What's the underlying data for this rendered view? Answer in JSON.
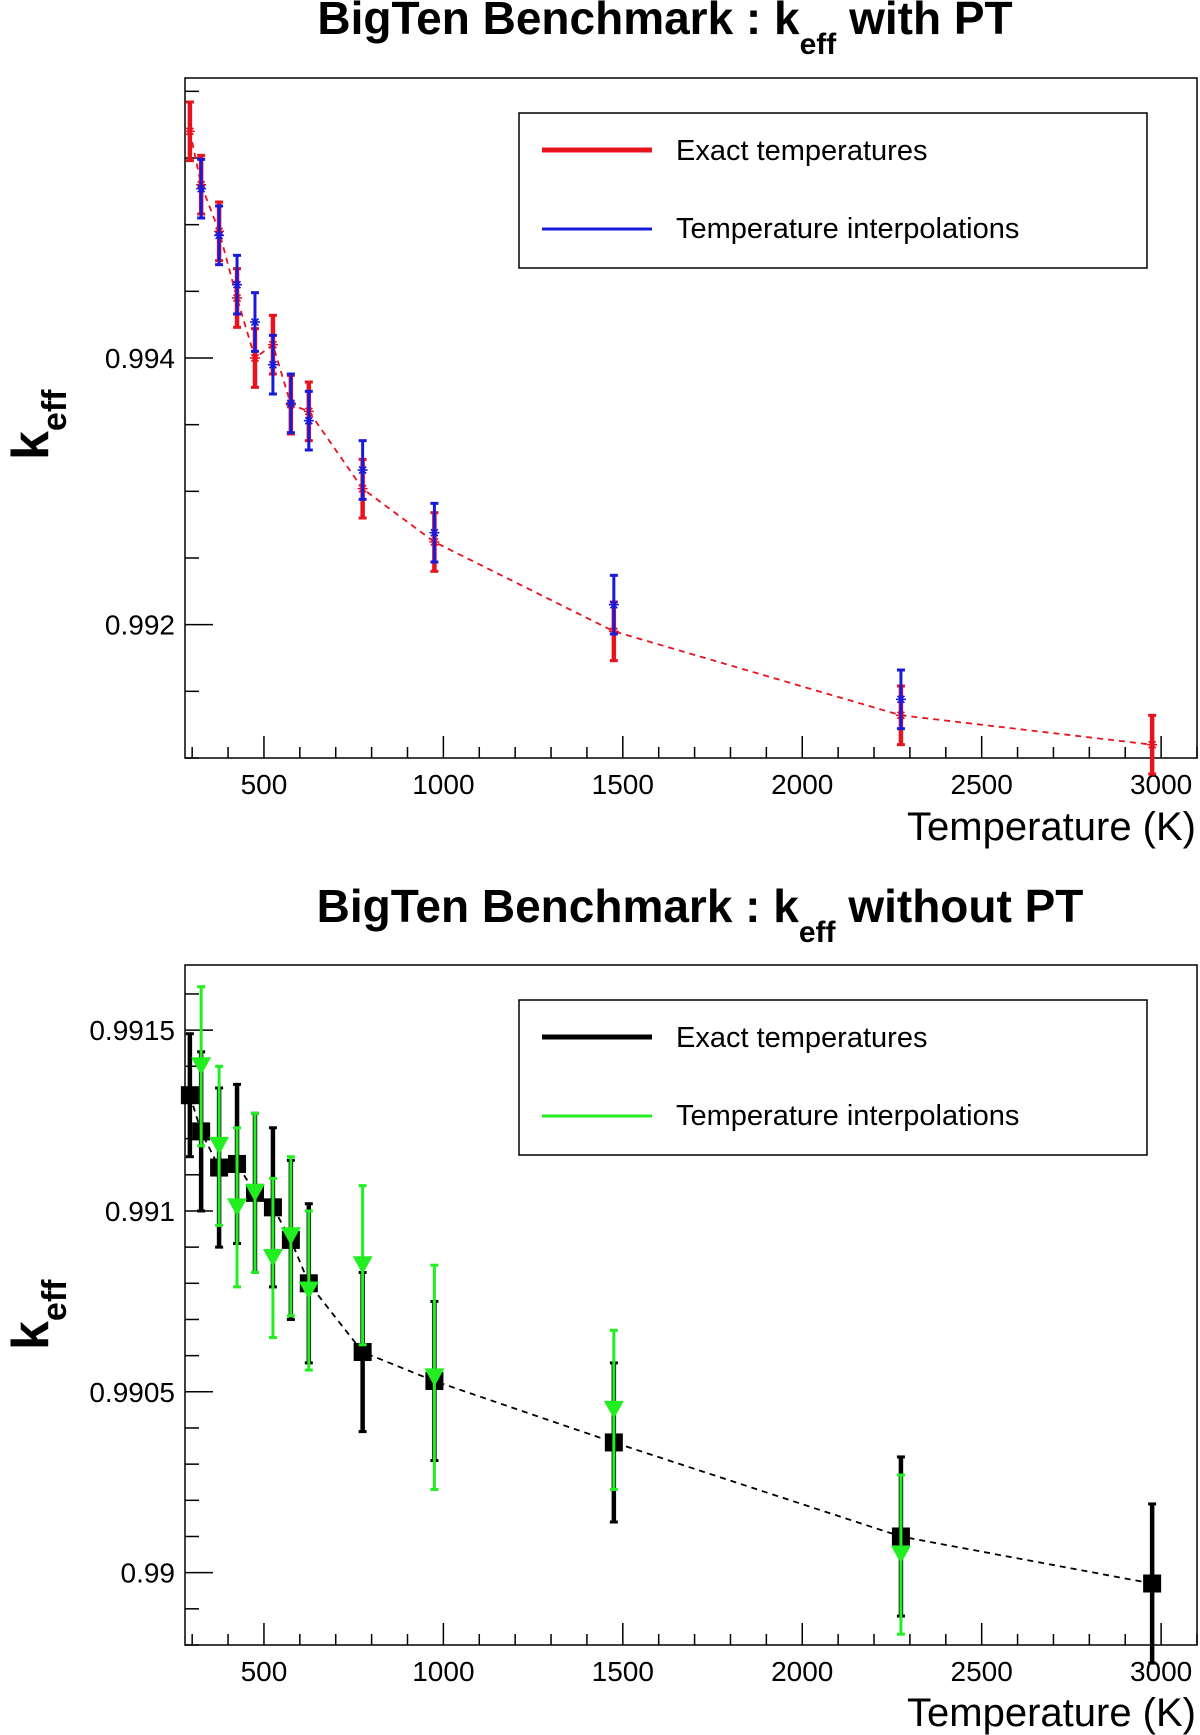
{
  "chart_data": [
    {
      "type": "scatter",
      "title": "BigTen Benchmark : k",
      "title_subscript": "eff",
      "title_suffix": " with PT",
      "xlabel": "Temperature (K)",
      "ylabel": "k",
      "ylabel_subscript": "eff",
      "xlim": [
        280,
        3100
      ],
      "ylim": [
        0.991,
        0.9961
      ],
      "xticks": [
        500,
        1000,
        1500,
        2000,
        2500,
        3000
      ],
      "xtick_labels": [
        "500",
        "1000",
        "1500",
        "2000",
        "2500",
        "3000"
      ],
      "yticks": [
        0.994,
        0.992
      ],
      "ytick_labels": [
        "0.994",
        "0.992"
      ],
      "yminor_step": 0.0005,
      "legend_position": "top-right",
      "fit_line": {
        "color": "#e8131f",
        "style": "dashed",
        "follows_series": 0
      },
      "series": [
        {
          "name": "Exact temperatures",
          "color": "#e8131f",
          "marker": "star",
          "x": [
            293.6,
            325,
            375,
            425,
            475,
            525,
            575,
            625,
            775,
            975,
            1475,
            2275,
            2975
          ],
          "y": [
            0.9957,
            0.9953,
            0.99495,
            0.99445,
            0.994,
            0.9941,
            0.99365,
            0.9936,
            0.99302,
            0.99262,
            0.99195,
            0.99132,
            0.9911
          ],
          "err": [
            0.00022,
            0.00022,
            0.00022,
            0.00022,
            0.00022,
            0.00022,
            0.00022,
            0.00022,
            0.00022,
            0.00022,
            0.00022,
            0.00022,
            0.00022
          ]
        },
        {
          "name": "Temperature interpolations",
          "color": "#1a1adb",
          "marker": "star",
          "x": [
            325,
            375,
            425,
            475,
            525,
            575,
            625,
            775,
            975,
            1475,
            2275
          ],
          "y": [
            0.99527,
            0.99492,
            0.99455,
            0.99427,
            0.99395,
            0.99366,
            0.99353,
            0.99316,
            0.99269,
            0.99215,
            0.99144
          ],
          "err": [
            0.00022,
            0.00022,
            0.00022,
            0.00022,
            0.00022,
            0.00022,
            0.00022,
            0.00022,
            0.00022,
            0.00022,
            0.00022
          ]
        }
      ]
    },
    {
      "type": "scatter",
      "title": "BigTen Benchmark : k",
      "title_subscript": "eff",
      "title_suffix": " without PT",
      "xlabel": "Temperature (K)",
      "ylabel": "k",
      "ylabel_subscript": "eff",
      "xlim": [
        280,
        3100
      ],
      "ylim": [
        0.9898,
        0.99168
      ],
      "xticks": [
        500,
        1000,
        1500,
        2000,
        2500,
        3000
      ],
      "xtick_labels": [
        "500",
        "1000",
        "1500",
        "2000",
        "2500",
        "3000"
      ],
      "yticks": [
        0.9915,
        0.991,
        0.9905,
        0.99
      ],
      "ytick_labels": [
        "0.9915",
        "0.991",
        "0.9905",
        "0.99"
      ],
      "yminor_step": 0.0001,
      "legend_position": "top-right",
      "fit_line": {
        "color": "#000000",
        "style": "dashed",
        "follows_series": 0
      },
      "series": [
        {
          "name": "Exact temperatures",
          "color": "#000000",
          "marker": "square",
          "x": [
            293.6,
            325,
            375,
            425,
            475,
            525,
            575,
            625,
            775,
            975,
            1475,
            2275,
            2975
          ],
          "y": [
            0.99132,
            0.99122,
            0.99112,
            0.99113,
            0.99105,
            0.99101,
            0.99092,
            0.9908,
            0.99061,
            0.99053,
            0.99036,
            0.9901,
            0.98997
          ],
          "err": [
            0.00017,
            0.00022,
            0.00022,
            0.00022,
            0.00022,
            0.00022,
            0.00022,
            0.00022,
            0.00022,
            0.00022,
            0.00022,
            0.00022,
            0.00022
          ]
        },
        {
          "name": "Temperature interpolations",
          "color": "#22ee22",
          "marker": "triangle-down",
          "x": [
            325,
            375,
            425,
            475,
            525,
            575,
            625,
            775,
            975,
            1475,
            2275
          ],
          "y": [
            0.9914,
            0.99118,
            0.99101,
            0.99105,
            0.99087,
            0.99093,
            0.99078,
            0.99085,
            0.99054,
            0.99045,
            0.99005
          ],
          "err": [
            0.00022,
            0.00022,
            0.00022,
            0.00022,
            0.00022,
            0.00022,
            0.00022,
            0.00022,
            0.00031,
            0.00022,
            0.00022
          ]
        }
      ]
    }
  ]
}
